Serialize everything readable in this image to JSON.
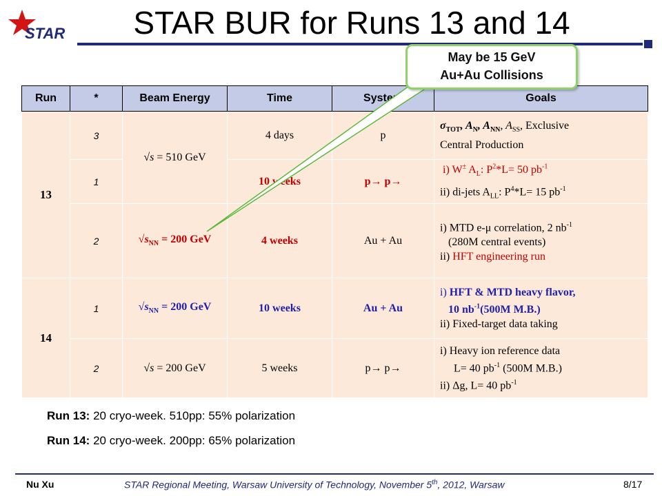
{
  "header": {
    "logo_text": "STAR",
    "title": "STAR BUR for Runs 13 and 14"
  },
  "callout": {
    "line1": "May be 15 GeV",
    "line2": "Au+Au Collisions"
  },
  "table": {
    "headers": [
      "Run",
      "*",
      "Beam Energy",
      "Time",
      "System",
      "Goals"
    ],
    "runs": [
      "13",
      "14"
    ],
    "r1": {
      "priority": "3",
      "energy": "= 510 GeV",
      "time": "4 days",
      "system": "p",
      "g1_sigma": "σ",
      "g1_tot": "TOT",
      "g1_an": ", A",
      "g1_an_sub": "N",
      "g1_ann": ", A",
      "g1_ann_sub": "NN",
      "g1_ass": ", A",
      "g1_ass_sub": "SS",
      "g1_rest": ", Exclusive",
      "g1_line2": "Central Production"
    },
    "r2": {
      "priority": "1",
      "time": "10 weeks",
      "system": "p→ p→",
      "g1a": "i) W",
      "g1_pm": "±",
      "g1b": " A",
      "g1_sub": "L",
      "g1c": ": P",
      "g1_sup": "2",
      "g1d": "*L= 50 pb",
      "g1_sup2": "-1",
      "g2a": "ii) di-jets A",
      "g2_sub": "LL",
      "g2b": ": P",
      "g2_sup": "4",
      "g2c": "*L= 15 pb",
      "g2_sup2": "-1"
    },
    "r3": {
      "priority": "2",
      "energy_sub": "NN",
      "energy": " = 200 GeV",
      "time": "4 weeks",
      "system": "Au + Au",
      "g1": "i) MTD e-μ correlation, 2 nb",
      "g1_sup": "-1",
      "g2": "(280M central events)",
      "g3_pre": "ii) ",
      "g3": "HFT engineering run"
    },
    "r4": {
      "priority": "1",
      "energy_sub": "NN",
      "energy": " = 200 GeV",
      "time": "10 weeks",
      "system": "Au + Au",
      "g1_pre": "i) ",
      "g1": "HFT & MTD heavy flavor,",
      "g2": "10 nb",
      "g2_sup": "-1",
      "g2b": "(500M M.B.)",
      "g3": "ii) Fixed-target data taking"
    },
    "r5": {
      "priority": "2",
      "energy": "= 200 GeV",
      "time": "5 weeks",
      "system": "p→ p→",
      "g1": "i) Heavy ion reference data",
      "g2": "L= 40 pb",
      "g2_sup": "-1",
      "g2b": " (500M M.B.)",
      "g3": "ii) Δg,  L= 40 pb",
      "g3_sup": "-1"
    }
  },
  "notes": {
    "run13_label": "Run 13:",
    "run13_text": " 20 cryo-week. 510pp: 55% polarization",
    "run14_label": "Run 14:",
    "run14_text": " 20 cryo-week. 200pp: 65% polarization"
  },
  "footer": {
    "author": "Nu Xu",
    "meeting_pre": "STAR Regional Meeting, Warsaw University of Technology, November 5",
    "meeting_sup": "th",
    "meeting_post": ", 2012, Warsaw",
    "page": "8/17"
  },
  "colors": {
    "header_fill": "#c3cbe6",
    "cell_fill": "#fde9d9",
    "accent_red": "#c00000",
    "accent_blue": "#1f1fa8",
    "rule": "#1f2a7a",
    "callout_border": "#8fd26a"
  }
}
